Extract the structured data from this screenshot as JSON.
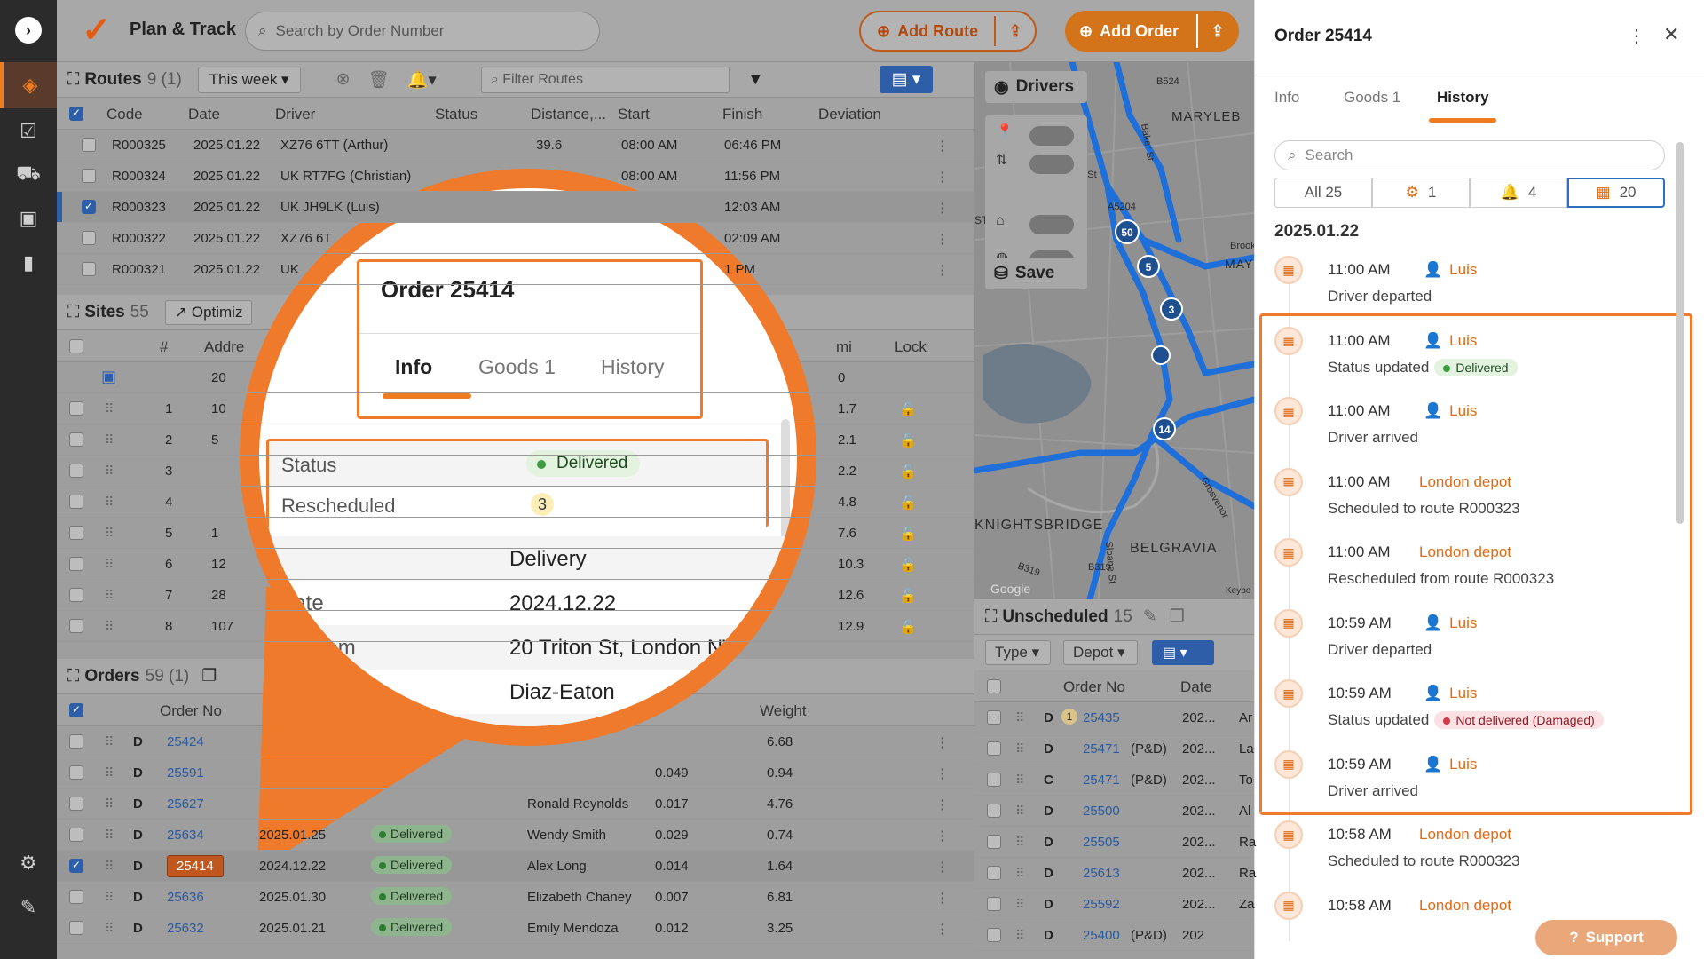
{
  "app": {
    "brand": "Plan & Track",
    "search_placeholder": "Search by Order Number"
  },
  "toolbar": {
    "add_route": "Add Route",
    "add_order": "Add Order"
  },
  "routes": {
    "title": "Routes",
    "count": "9 (1)",
    "period": "This week",
    "filter_placeholder": "Filter Routes",
    "columns": [
      "Code",
      "Date",
      "Driver",
      "Status",
      "Distance,...",
      "Start",
      "Finish",
      "Deviation"
    ],
    "rows": [
      {
        "code": "R000325",
        "date": "2025.01.22",
        "driver": "XZ76 6TT (Arthur)",
        "distance": "39.6",
        "start": "08:00 AM",
        "finish": "06:46 PM",
        "checked": false
      },
      {
        "code": "R000324",
        "date": "2025.01.22",
        "driver": "UK RT7FG (Christian)",
        "distance": "",
        "start": "08:00 AM",
        "finish": "11:56 PM",
        "checked": false
      },
      {
        "code": "R000323",
        "date": "2025.01.22",
        "driver": "UK JH9LK (Luis)",
        "distance": "",
        "start": "",
        "finish": "12:03 AM",
        "checked": true
      },
      {
        "code": "R000322",
        "date": "2025.01.22",
        "driver": "XZ76 6T",
        "distance": "",
        "start": "",
        "finish": "02:09 AM",
        "checked": false
      },
      {
        "code": "R000321",
        "date": "2025.01.22",
        "driver": "UK",
        "distance": "",
        "start": "",
        "finish": "1 PM",
        "checked": false
      }
    ]
  },
  "sites": {
    "title": "Sites",
    "count": "55",
    "optimize": "Optimiz",
    "columns": [
      "#",
      "Addre",
      "mi",
      "Lock"
    ],
    "rows": [
      {
        "n": "",
        "addr": "20",
        "mi": "0"
      },
      {
        "n": "1",
        "addr": "10",
        "mi": "1.7"
      },
      {
        "n": "2",
        "addr": "5",
        "mi": "2.1"
      },
      {
        "n": "3",
        "addr": "",
        "mi": "2.2"
      },
      {
        "n": "4",
        "addr": "",
        "mi": "4.8"
      },
      {
        "n": "5",
        "addr": "1",
        "mi": "7.6"
      },
      {
        "n": "6",
        "addr": "12",
        "mi": "10.3"
      },
      {
        "n": "7",
        "addr": "28",
        "mi": "12.6"
      },
      {
        "n": "8",
        "addr": "107",
        "mi": "12.9"
      }
    ]
  },
  "orders": {
    "title": "Orders",
    "count": "59 (1)",
    "columns": [
      "Order No",
      "Weight"
    ],
    "rows": [
      {
        "type": "D",
        "no": "25424",
        "date": "",
        "status": "",
        "name": "",
        "vol": "",
        "weight": "6.68",
        "checked": false
      },
      {
        "type": "D",
        "no": "25591",
        "date": "",
        "status": "",
        "name": "",
        "vol": "0.049",
        "weight": "0.94",
        "checked": false
      },
      {
        "type": "D",
        "no": "25627",
        "date": "",
        "status": "",
        "name": "Ronald Reynolds",
        "vol": "0.017",
        "weight": "4.76",
        "checked": false
      },
      {
        "type": "D",
        "no": "25634",
        "date": "2025.01.25",
        "status": "Delivered",
        "name": "Wendy Smith",
        "vol": "0.029",
        "weight": "0.74",
        "checked": false
      },
      {
        "type": "D",
        "no": "25414",
        "date": "2024.12.22",
        "status": "Delivered",
        "name": "Alex Long",
        "vol": "0.014",
        "weight": "1.64",
        "checked": true
      },
      {
        "type": "D",
        "no": "25636",
        "date": "2025.01.30",
        "status": "Delivered",
        "name": "Elizabeth Chaney",
        "vol": "0.007",
        "weight": "6.81",
        "checked": false
      },
      {
        "type": "D",
        "no": "25632",
        "date": "2025.01.21",
        "status": "Delivered",
        "name": "Emily Mendoza",
        "vol": "0.012",
        "weight": "3.25",
        "checked": false
      }
    ]
  },
  "map": {
    "drivers_label": "Drivers",
    "save_label": "Save",
    "labels": [
      "MARYLEB",
      "KNIGHTSBRIDGE",
      "BELGRAVIA",
      "Google",
      "Keybo",
      "B524",
      "A5204",
      "Baker St",
      "B319",
      "B319",
      "Sloane St",
      "Grosvenor",
      "ge St",
      "MAY",
      "Brook",
      "STATE"
    ],
    "markers": [
      "50",
      "5",
      "3",
      "14"
    ]
  },
  "unscheduled": {
    "title": "Unscheduled",
    "count": "15",
    "type_label": "Type",
    "depot_label": "Depot",
    "columns": [
      "Order No",
      "Date"
    ],
    "rows": [
      {
        "type": "D",
        "badge": "1",
        "no": "25435",
        "suffix": "",
        "date": "202...",
        "extra": "Ar"
      },
      {
        "type": "D",
        "badge": "",
        "no": "25471",
        "suffix": "(P&D)",
        "date": "202...",
        "extra": "La"
      },
      {
        "type": "C",
        "badge": "",
        "no": "25471",
        "suffix": "(P&D)",
        "date": "202...",
        "extra": "To"
      },
      {
        "type": "D",
        "badge": "",
        "no": "25500",
        "suffix": "",
        "date": "202...",
        "extra": "Al"
      },
      {
        "type": "D",
        "badge": "",
        "no": "25505",
        "suffix": "",
        "date": "202...",
        "extra": "Ra"
      },
      {
        "type": "D",
        "badge": "",
        "no": "25613",
        "suffix": "",
        "date": "202...",
        "extra": "Ra"
      },
      {
        "type": "D",
        "badge": "",
        "no": "25592",
        "suffix": "",
        "date": "202...",
        "extra": "Za"
      },
      {
        "type": "D",
        "badge": "",
        "no": "25400",
        "suffix": "(P&D)",
        "date": "202",
        "extra": ""
      }
    ]
  },
  "panel": {
    "title": "Order 25414",
    "tabs": [
      "Info",
      "Goods 1",
      "History"
    ],
    "active_tab": "History",
    "search_placeholder": "Search",
    "filters": [
      "All 25",
      "1",
      "4",
      "20"
    ],
    "date": "2025.01.22",
    "history": [
      {
        "time": "11:00 AM",
        "who": "Luis",
        "is_user": true,
        "desc": "Driver departed",
        "status": "",
        "status_kind": ""
      },
      {
        "time": "11:00 AM",
        "who": "Luis",
        "is_user": true,
        "desc": "Status updated",
        "status": "Delivered",
        "status_kind": "ok"
      },
      {
        "time": "11:00 AM",
        "who": "Luis",
        "is_user": true,
        "desc": "Driver arrived",
        "status": "",
        "status_kind": ""
      },
      {
        "time": "11:00 AM",
        "who": "London depot",
        "is_user": false,
        "desc": "Scheduled to route R000323",
        "status": "",
        "status_kind": ""
      },
      {
        "time": "11:00 AM",
        "who": "London depot",
        "is_user": false,
        "desc": "Rescheduled from route R000323",
        "status": "",
        "status_kind": ""
      },
      {
        "time": "10:59 AM",
        "who": "Luis",
        "is_user": true,
        "desc": "Driver departed",
        "status": "",
        "status_kind": ""
      },
      {
        "time": "10:59 AM",
        "who": "Luis",
        "is_user": true,
        "desc": "Status updated",
        "status": "Not delivered (Damaged)",
        "status_kind": "bad"
      },
      {
        "time": "10:59 AM",
        "who": "Luis",
        "is_user": true,
        "desc": "Driver arrived",
        "status": "",
        "status_kind": ""
      },
      {
        "time": "10:58 AM",
        "who": "London depot",
        "is_user": false,
        "desc": "Scheduled to route R000323",
        "status": "",
        "status_kind": ""
      },
      {
        "time": "10:58 AM",
        "who": "London depot",
        "is_user": false,
        "desc": "",
        "status": "",
        "status_kind": ""
      }
    ],
    "support_label": "Support"
  },
  "magnifier": {
    "title": "Order 25414",
    "tabs": [
      "Info",
      "Goods 1",
      "History"
    ],
    "active_tab": "Info",
    "status_key": "Status",
    "status_value": "Delivered",
    "rescheduled_key": "Rescheduled",
    "rescheduled_value": "3",
    "rows": [
      {
        "k": "",
        "v": "Delivery"
      },
      {
        "k": "Date",
        "v": "2024.12.22"
      },
      {
        "k": "hip from",
        "v": "20 Triton St, London NW..."
      },
      {
        "k": "",
        "v": "Diaz-Eaton"
      },
      {
        "k": "",
        "v": "Alex Long"
      }
    ]
  },
  "colors": {
    "accent": "#F07C22",
    "link": "#2A5A9E",
    "route": "#1E6FD9",
    "highlight": "#EF7A2B"
  }
}
